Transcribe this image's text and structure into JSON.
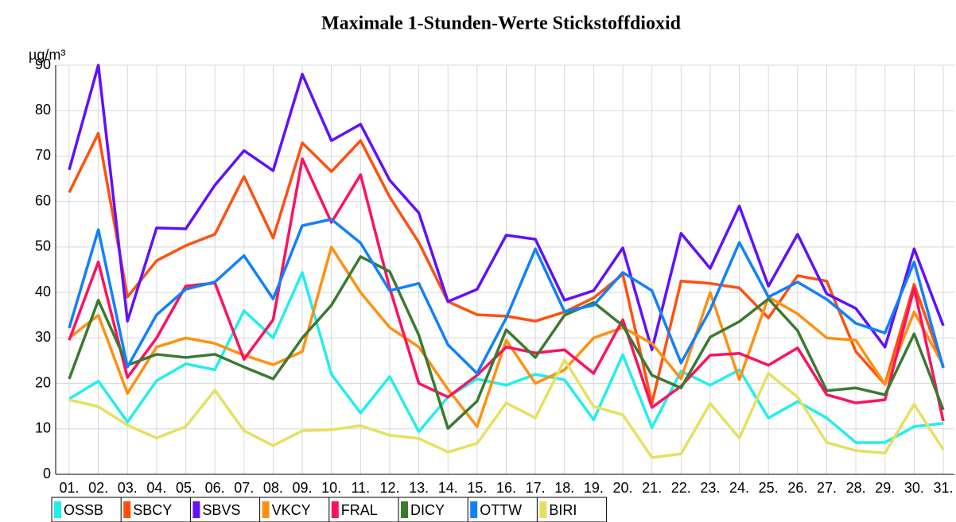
{
  "chart_data": {
    "type": "line",
    "title": "Maximale 1-Stunden-Werte Stickstoffdioxid",
    "y_unit": "µg/m³",
    "categories": [
      "01.",
      "02.",
      "03.",
      "04.",
      "05.",
      "06.",
      "07.",
      "08.",
      "09.",
      "10.",
      "11.",
      "12.",
      "13.",
      "14.",
      "15.",
      "16.",
      "17.",
      "18.",
      "19.",
      "20.",
      "21.",
      "22.",
      "23.",
      "24.",
      "25.",
      "26.",
      "27.",
      "28.",
      "29.",
      "30.",
      "31."
    ],
    "ylim": [
      0,
      90
    ],
    "yticks": [
      0,
      10,
      20,
      30,
      40,
      50,
      60,
      70,
      80,
      90
    ],
    "grid": true,
    "legend": "bottom",
    "series": [
      {
        "name": "OSSB",
        "color": "#22eeee",
        "values": [
          16.6,
          20.5,
          11.5,
          20.6,
          24.3,
          23,
          36,
          30,
          44.4,
          22,
          13.5,
          21.5,
          9.4,
          17,
          21,
          19.6,
          22,
          20.8,
          12,
          26.3,
          10.3,
          22.7,
          19.6,
          23,
          12.4,
          16,
          12.4,
          7,
          7,
          10.5,
          11.2
        ]
      },
      {
        "name": "SBCY",
        "color": "#ff5010",
        "values": [
          62,
          75,
          39,
          47,
          50.3,
          52.8,
          65.5,
          52,
          72.9,
          66.6,
          73.4,
          61,
          51,
          38,
          35.1,
          34.8,
          33.7,
          35.7,
          38.8,
          44,
          15.6,
          42.5,
          42,
          41,
          34.4,
          43.7,
          42.5,
          27,
          19.8,
          41.8,
          23.6
        ]
      },
      {
        "name": "SBVS",
        "color": "#6010ff",
        "values": [
          67,
          90,
          33.7,
          54.2,
          54,
          63.6,
          71.2,
          66.8,
          88,
          73.4,
          77,
          64.7,
          57.5,
          38,
          40.7,
          52.6,
          51.7,
          38.3,
          40.4,
          49.8,
          27.4,
          53,
          45.3,
          59,
          41.4,
          52.8,
          39.7,
          36.5,
          28,
          49.6,
          32.7
        ]
      },
      {
        "name": "VKCY",
        "color": "#ff9010",
        "values": [
          30,
          35,
          17.8,
          28,
          30,
          28.8,
          26.2,
          24.1,
          27,
          50,
          40,
          32.3,
          28,
          18.7,
          10.5,
          29.5,
          20,
          23,
          30,
          32.3,
          28.8,
          21,
          40,
          20.8,
          39,
          35.3,
          30,
          29.5,
          19.8,
          35.7,
          24
        ]
      },
      {
        "name": "FRAL",
        "color": "#ff1060",
        "values": [
          29.5,
          46.7,
          21.3,
          30,
          41.4,
          42.1,
          25.3,
          34,
          69.4,
          55.4,
          65.9,
          41,
          20,
          17,
          21.8,
          28,
          26.7,
          27.4,
          22.2,
          34,
          14.7,
          19.4,
          26.2,
          26.6,
          24,
          27.8,
          17.5,
          15.7,
          16.4,
          41,
          11.7
        ]
      },
      {
        "name": "DICY",
        "color": "#3a7a30",
        "values": [
          21,
          38.3,
          24,
          26.4,
          25.7,
          26.4,
          23.6,
          21,
          30,
          37.2,
          47.9,
          44.6,
          30.6,
          10.1,
          16.1,
          31.8,
          25.7,
          35,
          37.8,
          32.7,
          21.8,
          19,
          30.2,
          33.6,
          38.6,
          31.6,
          18.4,
          19,
          17.5,
          30.9,
          14.2
        ]
      },
      {
        "name": "OTTW",
        "color": "#1080ff",
        "values": [
          32.2,
          53.8,
          23.6,
          35.1,
          40.7,
          42.3,
          48.1,
          38.6,
          54.7,
          56.1,
          50.9,
          40.4,
          42,
          28.5,
          22.2,
          34.4,
          49.6,
          35.8,
          37.2,
          44.4,
          40.4,
          24.5,
          36.2,
          51,
          39,
          42.3,
          38.5,
          33.2,
          31.1,
          46.7,
          23.4
        ]
      },
      {
        "name": "BIRI",
        "color": "#e6e060",
        "values": [
          16.4,
          14.9,
          10.8,
          8,
          10.5,
          18.5,
          9.6,
          6.3,
          9.6,
          9.8,
          10.7,
          8.6,
          7.9,
          4.9,
          6.8,
          15.7,
          12.4,
          25.2,
          14.9,
          13.1,
          3.7,
          4.5,
          15.6,
          8,
          22.2,
          17,
          7,
          5.2,
          4.7,
          15.4,
          5.4
        ]
      }
    ]
  }
}
